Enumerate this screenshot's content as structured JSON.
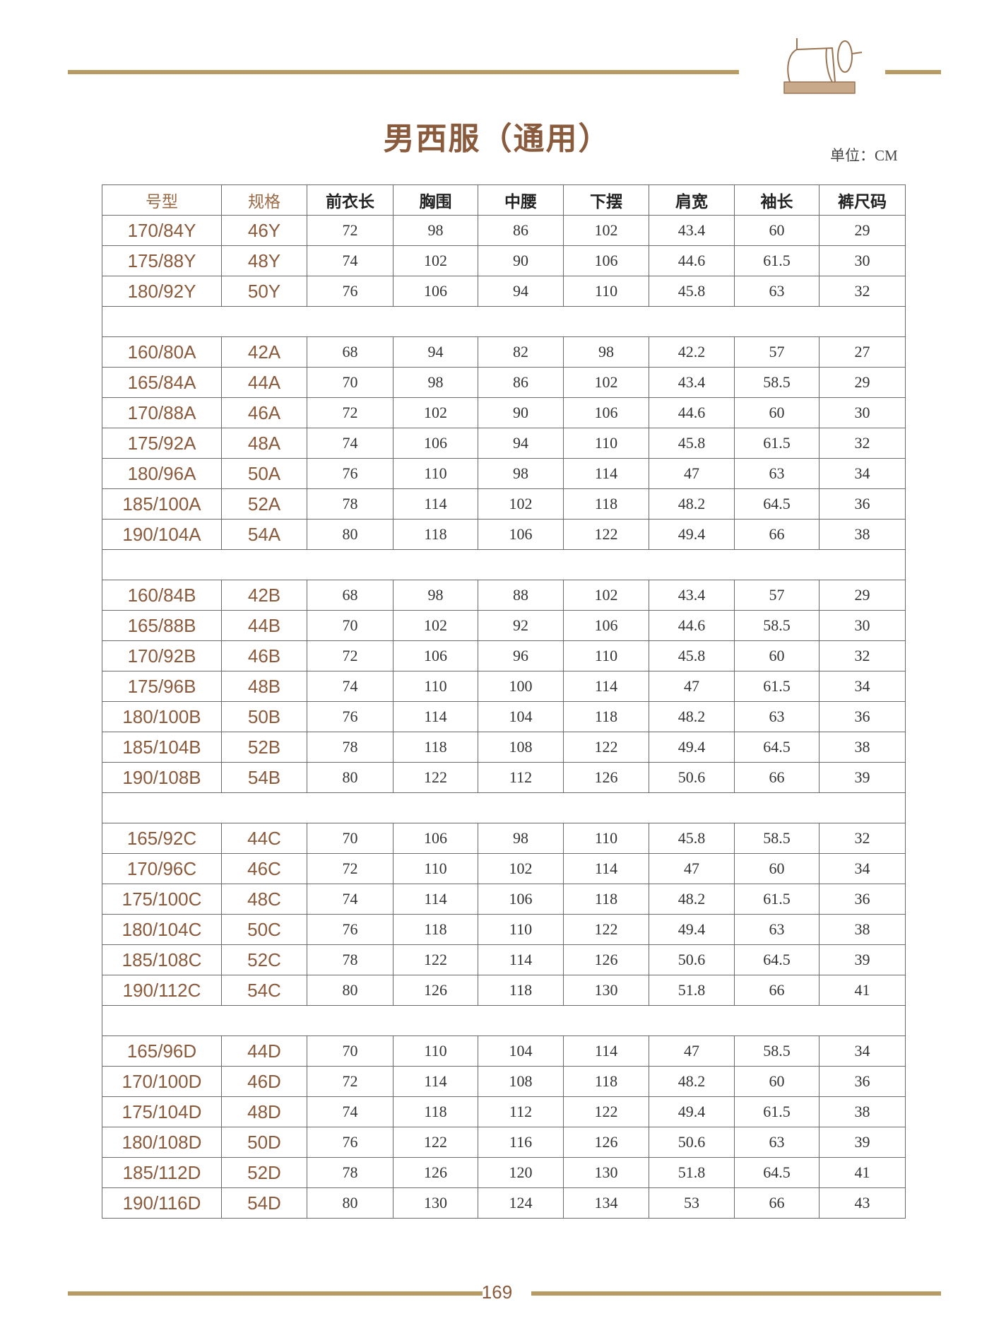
{
  "header": {
    "title": "男西服（通用）",
    "unit": "单位：CM",
    "logo": "sewing-machine",
    "accent_color": "#b89b62"
  },
  "table": {
    "columns": [
      "号型",
      "规格",
      "前衣长",
      "胸围",
      "中腰",
      "下摆",
      "肩宽",
      "袖长",
      "裤尺码"
    ],
    "groups": [
      [
        [
          "170/84Y",
          "46Y",
          "72",
          "98",
          "86",
          "102",
          "43.4",
          "60",
          "29"
        ],
        [
          "175/88Y",
          "48Y",
          "74",
          "102",
          "90",
          "106",
          "44.6",
          "61.5",
          "30"
        ],
        [
          "180/92Y",
          "50Y",
          "76",
          "106",
          "94",
          "110",
          "45.8",
          "63",
          "32"
        ]
      ],
      [
        [
          "160/80A",
          "42A",
          "68",
          "94",
          "82",
          "98",
          "42.2",
          "57",
          "27"
        ],
        [
          "165/84A",
          "44A",
          "70",
          "98",
          "86",
          "102",
          "43.4",
          "58.5",
          "29"
        ],
        [
          "170/88A",
          "46A",
          "72",
          "102",
          "90",
          "106",
          "44.6",
          "60",
          "30"
        ],
        [
          "175/92A",
          "48A",
          "74",
          "106",
          "94",
          "110",
          "45.8",
          "61.5",
          "32"
        ],
        [
          "180/96A",
          "50A",
          "76",
          "110",
          "98",
          "114",
          "47",
          "63",
          "34"
        ],
        [
          "185/100A",
          "52A",
          "78",
          "114",
          "102",
          "118",
          "48.2",
          "64.5",
          "36"
        ],
        [
          "190/104A",
          "54A",
          "80",
          "118",
          "106",
          "122",
          "49.4",
          "66",
          "38"
        ]
      ],
      [
        [
          "160/84B",
          "42B",
          "68",
          "98",
          "88",
          "102",
          "43.4",
          "57",
          "29"
        ],
        [
          "165/88B",
          "44B",
          "70",
          "102",
          "92",
          "106",
          "44.6",
          "58.5",
          "30"
        ],
        [
          "170/92B",
          "46B",
          "72",
          "106",
          "96",
          "110",
          "45.8",
          "60",
          "32"
        ],
        [
          "175/96B",
          "48B",
          "74",
          "110",
          "100",
          "114",
          "47",
          "61.5",
          "34"
        ],
        [
          "180/100B",
          "50B",
          "76",
          "114",
          "104",
          "118",
          "48.2",
          "63",
          "36"
        ],
        [
          "185/104B",
          "52B",
          "78",
          "118",
          "108",
          "122",
          "49.4",
          "64.5",
          "38"
        ],
        [
          "190/108B",
          "54B",
          "80",
          "122",
          "112",
          "126",
          "50.6",
          "66",
          "39"
        ]
      ],
      [
        [
          "165/92C",
          "44C",
          "70",
          "106",
          "98",
          "110",
          "45.8",
          "58.5",
          "32"
        ],
        [
          "170/96C",
          "46C",
          "72",
          "110",
          "102",
          "114",
          "47",
          "60",
          "34"
        ],
        [
          "175/100C",
          "48C",
          "74",
          "114",
          "106",
          "118",
          "48.2",
          "61.5",
          "36"
        ],
        [
          "180/104C",
          "50C",
          "76",
          "118",
          "110",
          "122",
          "49.4",
          "63",
          "38"
        ],
        [
          "185/108C",
          "52C",
          "78",
          "122",
          "114",
          "126",
          "50.6",
          "64.5",
          "39"
        ],
        [
          "190/112C",
          "54C",
          "80",
          "126",
          "118",
          "130",
          "51.8",
          "66",
          "41"
        ]
      ],
      [
        [
          "165/96D",
          "44D",
          "70",
          "110",
          "104",
          "114",
          "47",
          "58.5",
          "34"
        ],
        [
          "170/100D",
          "46D",
          "72",
          "114",
          "108",
          "118",
          "48.2",
          "60",
          "36"
        ],
        [
          "175/104D",
          "48D",
          "74",
          "118",
          "112",
          "122",
          "49.4",
          "61.5",
          "38"
        ],
        [
          "180/108D",
          "50D",
          "76",
          "122",
          "116",
          "126",
          "50.6",
          "63",
          "39"
        ],
        [
          "185/112D",
          "52D",
          "78",
          "126",
          "120",
          "130",
          "51.8",
          "64.5",
          "41"
        ],
        [
          "190/116D",
          "54D",
          "80",
          "130",
          "124",
          "134",
          "53",
          "66",
          "43"
        ]
      ]
    ]
  },
  "footer": {
    "page_number": "169"
  }
}
